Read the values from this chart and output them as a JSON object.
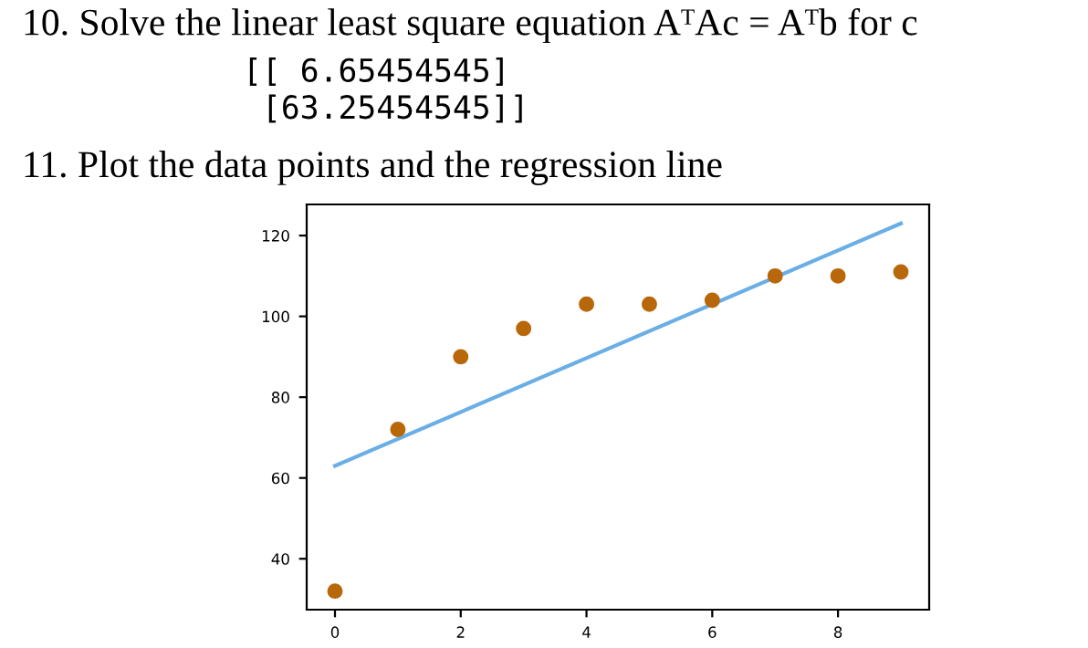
{
  "chart_data": {
    "type": "scatter",
    "title": "11. Plot the data points and the regression line",
    "annotations": [
      "10. Solve the linear least square equation AᵀAc = Aᵀb for c",
      "[[ 6.65454545]\n [63.25454545]]"
    ],
    "x": [
      0,
      1,
      2,
      3,
      4,
      5,
      6,
      7,
      8,
      9
    ],
    "series": [
      {
        "color": "#b8670a",
        "values": [
          32,
          72,
          90,
          97,
          103,
          103,
          104,
          110,
          110,
          111
        ]
      },
      {
        "type": "line",
        "color": "#6aaee6",
        "marker": "none",
        "x": [
          0,
          9
        ],
        "values": [
          63,
          123
        ]
      }
    ],
    "xlim": [
      -0.45,
      9.45
    ],
    "ylim": [
      27.4,
      127.7
    ],
    "xticks": [
      0,
      2,
      4,
      6,
      8
    ],
    "yticks": [
      40,
      60,
      80,
      100,
      120
    ],
    "marker": "circle",
    "grid": false,
    "legend": false
  }
}
